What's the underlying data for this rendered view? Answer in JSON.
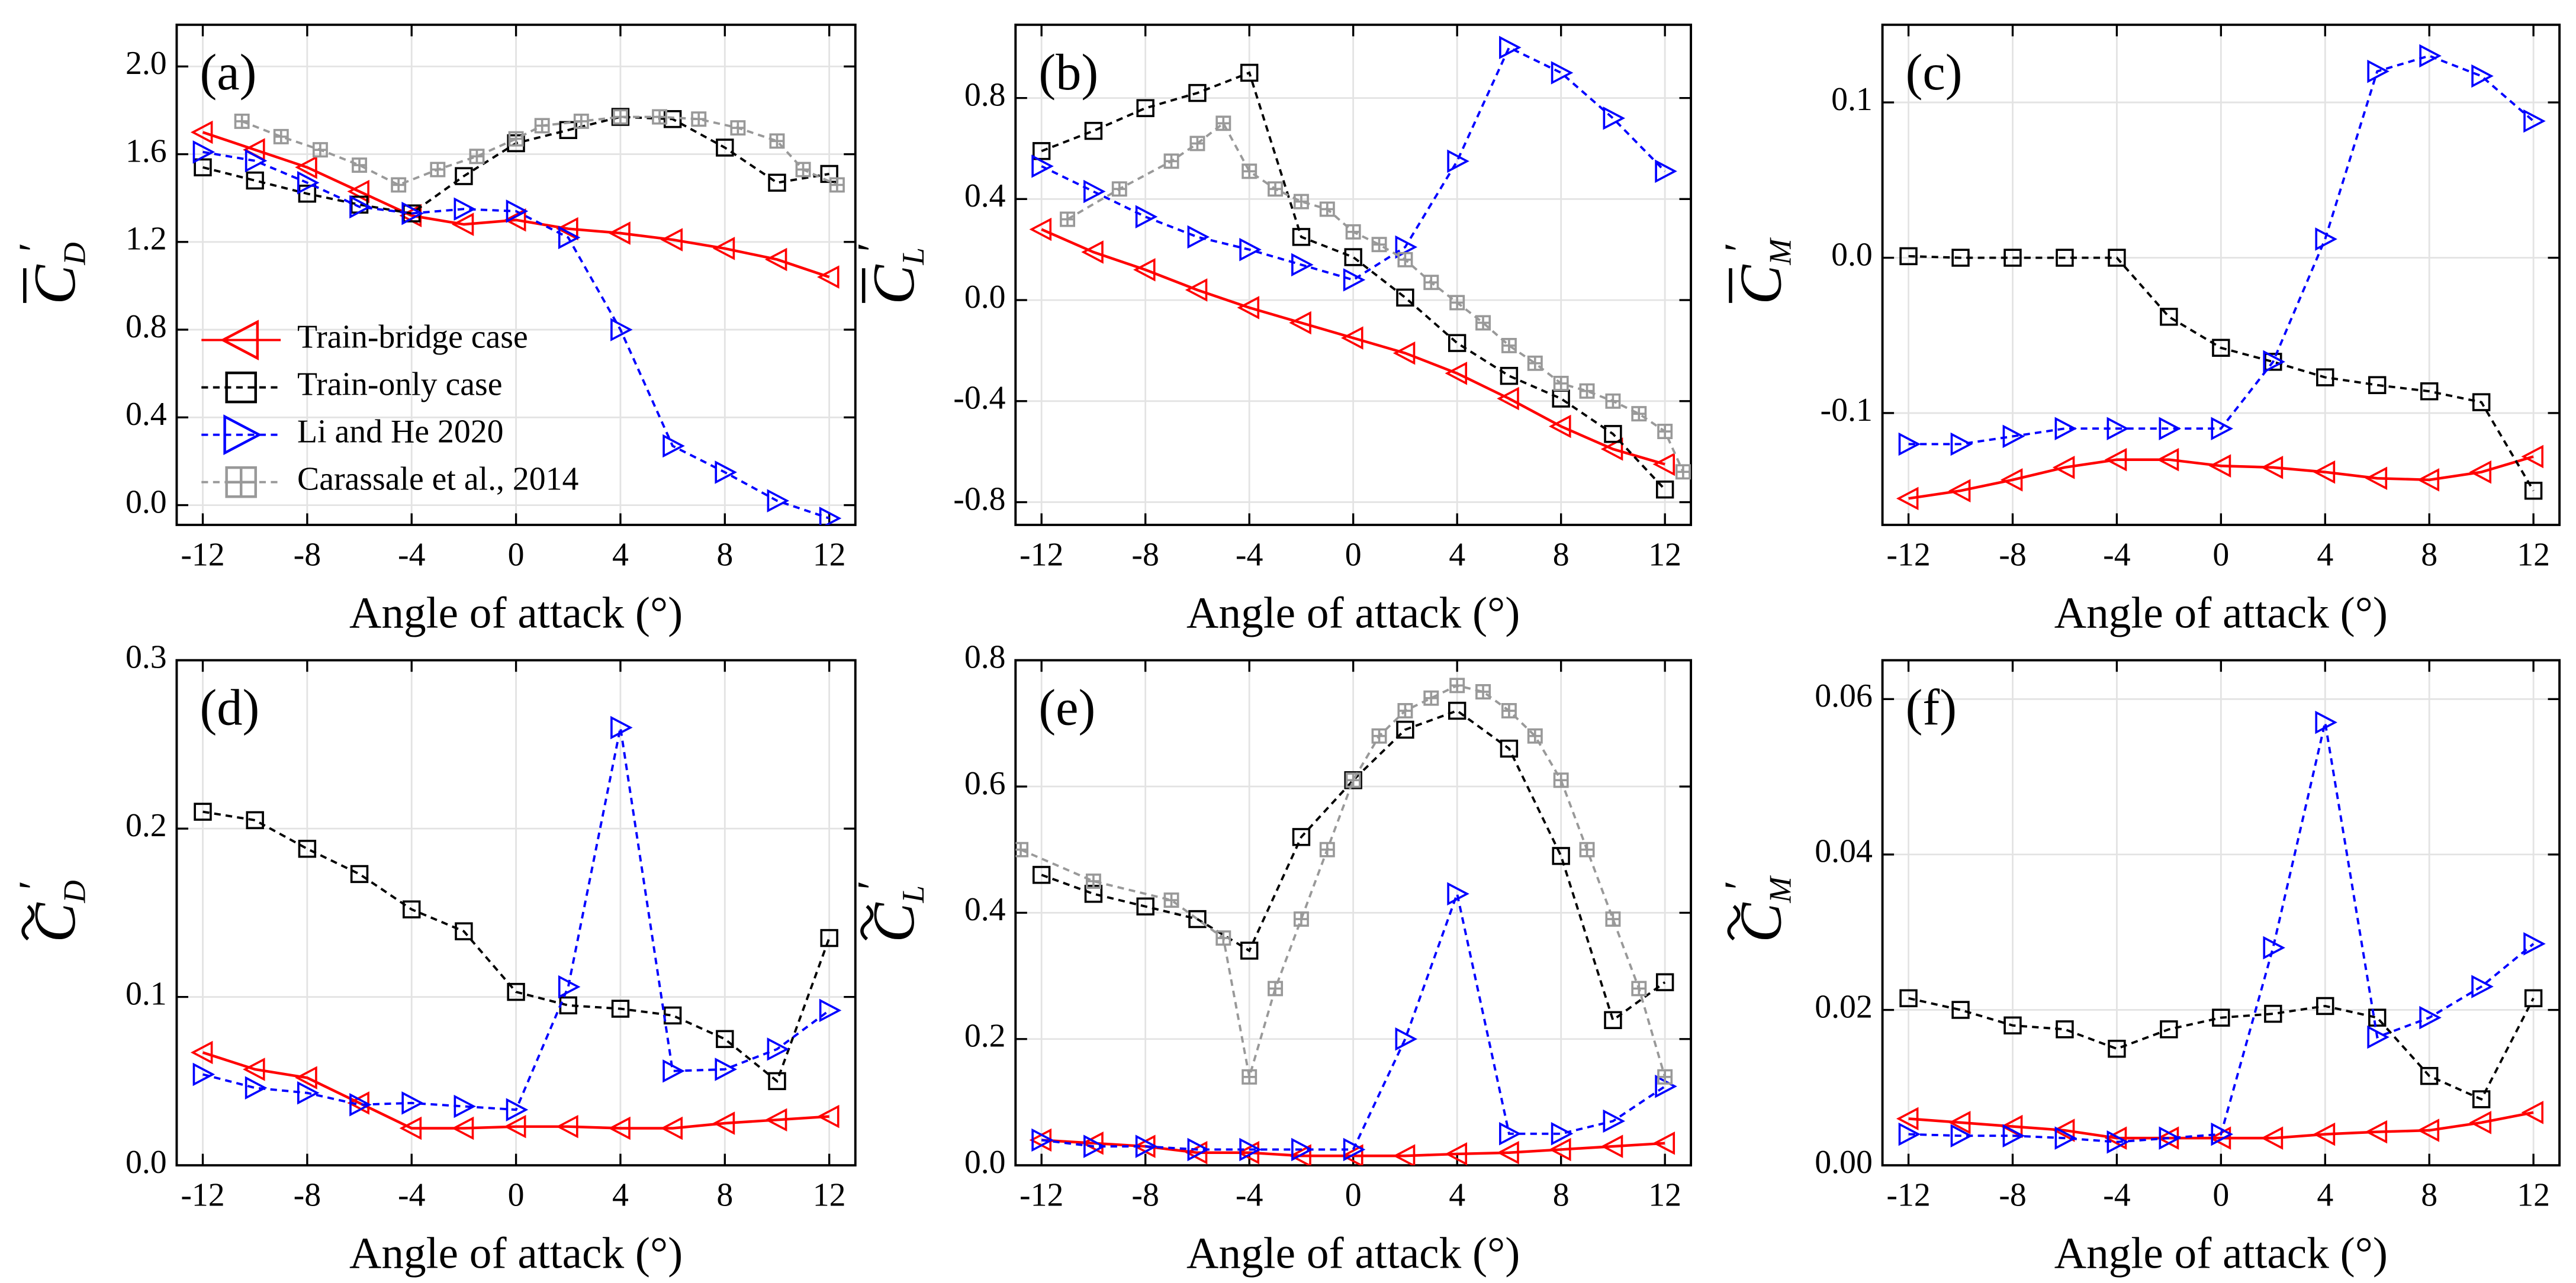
{
  "chart_data": [
    {
      "type": "line",
      "panel_label": "(a)",
      "ylabel": "C",
      "ylabel_sub": "D",
      "ylabel_sup": "′",
      "ylabel_accent": "bar",
      "xlabel": "Angle of  attack (°)",
      "xlim": [
        -13,
        13
      ],
      "xticks": [
        -12,
        -8,
        -4,
        0,
        4,
        8,
        12
      ],
      "ylim": [
        -0.09,
        2.19
      ],
      "yticks": [
        {
          "value": 0,
          "label": "0.0"
        },
        0.4,
        0.8,
        1.2,
        1.6,
        {
          "value": 2,
          "label": "2.0"
        }
      ],
      "grid": true,
      "legend": "lower left",
      "x": [
        -12,
        -10,
        -8,
        -6,
        -4,
        -2,
        0,
        2,
        4,
        6,
        8,
        10,
        12
      ],
      "series": [
        {
          "name": "Train-bridge case",
          "color": "#ff0000",
          "marker": "triangle-left",
          "dashed": false,
          "values": [
            1.7,
            1.62,
            1.54,
            1.43,
            1.32,
            1.28,
            1.3,
            1.26,
            1.24,
            1.21,
            1.17,
            1.12,
            1.04
          ]
        },
        {
          "name": "Train-only case",
          "color": "#000000",
          "marker": "square",
          "dashed": true,
          "values": [
            1.54,
            1.48,
            1.42,
            1.37,
            1.33,
            1.5,
            1.65,
            1.71,
            1.77,
            1.76,
            1.63,
            1.47,
            1.51
          ]
        },
        {
          "name": "Li and He 2020",
          "color": "#0000ff",
          "marker": "triangle-right",
          "dashed": true,
          "values": [
            1.61,
            1.57,
            1.47,
            1.36,
            1.33,
            1.35,
            1.34,
            1.22,
            0.8,
            0.27,
            0.15,
            0.02,
            -0.06
          ]
        },
        {
          "name": "Carassale et al., 2014",
          "color": "#999999",
          "marker": "square-cross",
          "dashed": true,
          "x": [
            -10.5,
            -9,
            -7.5,
            -6,
            -4.5,
            -3,
            -1.5,
            0,
            1,
            2.5,
            4,
            5.5,
            7,
            8.5,
            10,
            11,
            12.3
          ],
          "values": [
            1.75,
            1.68,
            1.62,
            1.55,
            1.46,
            1.53,
            1.59,
            1.67,
            1.73,
            1.75,
            1.77,
            1.77,
            1.76,
            1.72,
            1.66,
            1.53,
            1.46
          ]
        }
      ]
    },
    {
      "type": "line",
      "panel_label": "(b)",
      "ylabel": "C",
      "ylabel_sub": "L",
      "ylabel_sup": "′",
      "ylabel_accent": "bar",
      "xlabel": "Angle of  attack (°)",
      "xlim": [
        -13,
        13
      ],
      "xticks": [
        -12,
        -8,
        -4,
        0,
        4,
        8,
        12
      ],
      "ylim": [
        -0.89,
        1.09
      ],
      "yticks": [
        -0.8,
        -0.4,
        {
          "value": 0,
          "label": "0.0"
        },
        0.4,
        0.8
      ],
      "grid": true,
      "x": [
        -12,
        -10,
        -8,
        -6,
        -4,
        -2,
        0,
        2,
        4,
        6,
        8,
        10,
        12
      ],
      "series": [
        {
          "color": "#ff0000",
          "marker": "triangle-left",
          "dashed": false,
          "values": [
            0.28,
            0.19,
            0.12,
            0.04,
            -0.03,
            -0.09,
            -0.15,
            -0.21,
            -0.29,
            -0.39,
            -0.5,
            -0.59,
            -0.65
          ]
        },
        {
          "color": "#000000",
          "marker": "square",
          "dashed": true,
          "values": [
            0.59,
            0.67,
            0.76,
            0.82,
            0.9,
            0.25,
            0.17,
            0.01,
            -0.17,
            -0.3,
            -0.39,
            -0.53,
            -0.75
          ]
        },
        {
          "color": "#0000ff",
          "marker": "triangle-right",
          "dashed": true,
          "values": [
            0.53,
            0.43,
            0.33,
            0.25,
            0.2,
            0.14,
            0.08,
            0.21,
            0.55,
            1.0,
            0.9,
            0.72,
            0.51
          ]
        },
        {
          "color": "#999999",
          "marker": "square-cross",
          "dashed": true,
          "x": [
            -11,
            -9,
            -7,
            -6,
            -5,
            -4,
            -3,
            -2,
            -1,
            0,
            1,
            2,
            3,
            4,
            5,
            6,
            7,
            8,
            9,
            10,
            11,
            12,
            12.7
          ],
          "values": [
            0.32,
            0.44,
            0.55,
            0.62,
            0.7,
            0.51,
            0.44,
            0.39,
            0.36,
            0.27,
            0.22,
            0.16,
            0.07,
            -0.01,
            -0.09,
            -0.18,
            -0.25,
            -0.33,
            -0.36,
            -0.4,
            -0.45,
            -0.52,
            -0.68
          ]
        }
      ]
    },
    {
      "type": "line",
      "panel_label": "(c)",
      "ylabel": "C",
      "ylabel_sub": "M",
      "ylabel_sup": "′",
      "ylabel_accent": "bar",
      "xlabel": "Angle of  attack (°)",
      "xlim": [
        -13,
        13
      ],
      "xticks": [
        -12,
        -8,
        -4,
        0,
        4,
        8,
        12
      ],
      "ylim": [
        -0.172,
        0.15
      ],
      "yticks": [
        -0.1,
        {
          "value": 0,
          "label": "0.0"
        },
        0.1
      ],
      "grid": true,
      "x": [
        -12,
        -10,
        -8,
        -6,
        -4,
        -2,
        0,
        2,
        4,
        6,
        8,
        10,
        12
      ],
      "series": [
        {
          "color": "#ff0000",
          "marker": "triangle-left",
          "dashed": false,
          "values": [
            -0.155,
            -0.15,
            -0.143,
            -0.135,
            -0.13,
            -0.13,
            -0.134,
            -0.135,
            -0.138,
            -0.142,
            -0.143,
            -0.138,
            -0.128
          ]
        },
        {
          "color": "#000000",
          "marker": "square",
          "dashed": true,
          "values": [
            0.001,
            0,
            0,
            0,
            0,
            -0.038,
            -0.058,
            -0.067,
            -0.077,
            -0.082,
            -0.086,
            -0.093,
            -0.15
          ]
        },
        {
          "color": "#0000ff",
          "marker": "triangle-right",
          "dashed": true,
          "values": [
            -0.12,
            -0.12,
            -0.115,
            -0.11,
            -0.11,
            -0.11,
            -0.11,
            -0.067,
            0.012,
            0.12,
            0.13,
            0.117,
            0.088
          ]
        }
      ]
    },
    {
      "type": "line",
      "panel_label": "(d)",
      "ylabel": "C",
      "ylabel_sub": "D",
      "ylabel_sup": "′",
      "ylabel_accent": "tilde",
      "xlabel": "Angle of  attack (°)",
      "xlim": [
        -13,
        13
      ],
      "xticks": [
        -12,
        -8,
        -4,
        0,
        4,
        8,
        12
      ],
      "ylim": [
        0,
        0.3
      ],
      "yticks": [
        {
          "value": 0,
          "label": "0.0"
        },
        0.1,
        0.2,
        0.3
      ],
      "grid": true,
      "x": [
        -12,
        -10,
        -8,
        -6,
        -4,
        -2,
        0,
        2,
        4,
        6,
        8,
        10,
        12
      ],
      "series": [
        {
          "color": "#ff0000",
          "marker": "triangle-left",
          "dashed": false,
          "values": [
            0.067,
            0.057,
            0.052,
            0.037,
            0.022,
            0.022,
            0.023,
            0.023,
            0.022,
            0.022,
            0.025,
            0.027,
            0.029
          ]
        },
        {
          "color": "#000000",
          "marker": "square",
          "dashed": true,
          "values": [
            0.21,
            0.205,
            0.188,
            0.173,
            0.152,
            0.139,
            0.103,
            0.095,
            0.093,
            0.089,
            0.075,
            0.05,
            0.135
          ]
        },
        {
          "color": "#0000ff",
          "marker": "triangle-right",
          "dashed": true,
          "values": [
            0.054,
            0.046,
            0.043,
            0.036,
            0.037,
            0.035,
            0.033,
            0.106,
            0.26,
            0.056,
            0.057,
            0.069,
            0.092
          ]
        }
      ]
    },
    {
      "type": "line",
      "panel_label": "(e)",
      "ylabel": "C",
      "ylabel_sub": "L",
      "ylabel_sup": "′",
      "ylabel_accent": "tilde",
      "xlabel": "Angle of  attack (°)",
      "xlim": [
        -13,
        13
      ],
      "xticks": [
        -12,
        -8,
        -4,
        0,
        4,
        8,
        12
      ],
      "ylim": [
        0,
        0.8
      ],
      "yticks": [
        {
          "value": 0,
          "label": "0.0"
        },
        0.2,
        0.4,
        0.6,
        0.8
      ],
      "grid": true,
      "x": [
        -12,
        -10,
        -8,
        -6,
        -4,
        -2,
        0,
        2,
        4,
        6,
        8,
        10,
        12
      ],
      "series": [
        {
          "color": "#ff0000",
          "marker": "triangle-left",
          "dashed": false,
          "values": [
            0.04,
            0.035,
            0.03,
            0.02,
            0.02,
            0.015,
            0.015,
            0.015,
            0.018,
            0.02,
            0.025,
            0.03,
            0.035
          ]
        },
        {
          "color": "#000000",
          "marker": "square",
          "dashed": true,
          "values": [
            0.46,
            0.43,
            0.41,
            0.39,
            0.34,
            0.52,
            0.61,
            0.69,
            0.72,
            0.66,
            0.49,
            0.23,
            0.29
          ]
        },
        {
          "color": "#0000ff",
          "marker": "triangle-right",
          "dashed": true,
          "values": [
            0.04,
            0.03,
            0.03,
            0.025,
            0.025,
            0.025,
            0.025,
            0.2,
            0.43,
            0.05,
            0.05,
            0.07,
            0.125
          ]
        },
        {
          "color": "#999999",
          "marker": "square-cross",
          "dashed": true,
          "x": [
            -12.8,
            -10,
            -7,
            -5,
            -4,
            -3,
            -2,
            -1,
            0,
            1,
            2,
            3,
            4,
            5,
            6,
            7,
            8,
            9,
            10,
            11,
            12
          ],
          "values": [
            0.5,
            0.45,
            0.42,
            0.36,
            0.14,
            0.28,
            0.39,
            0.5,
            0.61,
            0.68,
            0.72,
            0.74,
            0.76,
            0.75,
            0.72,
            0.68,
            0.61,
            0.5,
            0.39,
            0.28,
            0.14
          ]
        }
      ]
    },
    {
      "type": "line",
      "panel_label": "(f)",
      "ylabel": "C",
      "ylabel_sub": "M",
      "ylabel_sup": "′",
      "ylabel_accent": "tilde",
      "xlabel": "Angle of  attack (°)",
      "xlim": [
        -13,
        13
      ],
      "xticks": [
        -12,
        -8,
        -4,
        0,
        4,
        8,
        12
      ],
      "ylim": [
        0,
        0.065
      ],
      "yticks": [
        {
          "value": 0,
          "label": "0.00"
        },
        0.02,
        0.04,
        0.06
      ],
      "grid": true,
      "x": [
        -12,
        -10,
        -8,
        -6,
        -4,
        -2,
        0,
        2,
        4,
        6,
        8,
        10,
        12
      ],
      "series": [
        {
          "color": "#ff0000",
          "marker": "triangle-left",
          "dashed": false,
          "values": [
            0.006,
            0.0055,
            0.005,
            0.0045,
            0.0035,
            0.0035,
            0.0035,
            0.0035,
            0.004,
            0.0043,
            0.0045,
            0.0055,
            0.0068
          ]
        },
        {
          "color": "#000000",
          "marker": "square",
          "dashed": true,
          "values": [
            0.0215,
            0.02,
            0.018,
            0.0175,
            0.015,
            0.0175,
            0.019,
            0.0195,
            0.0205,
            0.019,
            0.0115,
            0.0085,
            0.0215
          ]
        },
        {
          "color": "#0000ff",
          "marker": "triangle-right",
          "dashed": true,
          "values": [
            0.004,
            0.0038,
            0.0038,
            0.0035,
            0.003,
            0.0035,
            0.004,
            0.028,
            0.057,
            0.0165,
            0.019,
            0.023,
            0.0285
          ]
        }
      ]
    }
  ]
}
